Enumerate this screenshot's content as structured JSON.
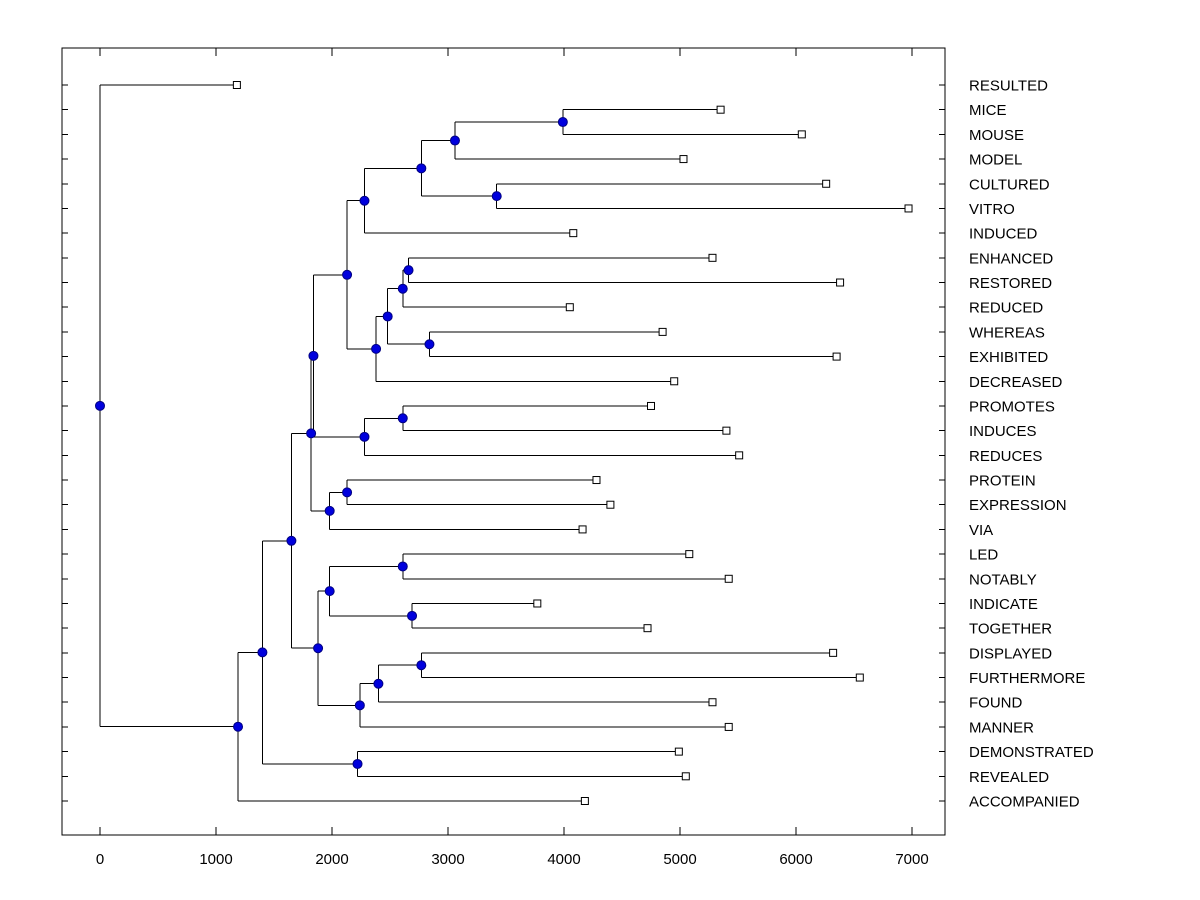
{
  "style": {
    "background": "#FFFFFF",
    "line_color": "#000000",
    "node_fill": "#0000DD",
    "node_stroke": "#000080",
    "leaf_fill": "#FFFFFF",
    "text_color": "#000000"
  },
  "chart_data": {
    "type": "dendrogram",
    "orientation": "horizontal",
    "leaf_labels_position": "right",
    "x_ticks": [
      0,
      1000,
      2000,
      3000,
      4000,
      5000,
      6000,
      7000
    ],
    "xlim": [
      -330,
      7290
    ],
    "grid": false,
    "leaf_order": [
      "RESULTED",
      "MICE",
      "MOUSE",
      "MODEL",
      "CULTURED",
      "VITRO",
      "INDUCED",
      "ENHANCED",
      "RESTORED",
      "REDUCED",
      "WHEREAS",
      "EXHIBITED",
      "DECREASED",
      "PROMOTES",
      "INDUCES",
      "REDUCES",
      "PROTEIN",
      "EXPRESSION",
      "VIA",
      "LED",
      "NOTABLY",
      "INDICATE",
      "TOGETHER",
      "DISPLAYED",
      "FURTHERMORE",
      "FOUND",
      "MANNER",
      "DEMONSTRATED",
      "REVEALED",
      "ACCOMPANIED"
    ],
    "tree": {
      "x": 0,
      "children": [
        {
          "leaf": true,
          "label": "RESULTED",
          "x": 1180
        },
        {
          "x": 1190,
          "children": [
            {
              "x": 1400,
              "children": [
                {
                  "x": 1650,
                  "children": [
                    {
                      "x": 1820,
                      "children": [
                        {
                          "x": 1840,
                          "children": [
                            {
                              "x": 2130,
                              "children": [
                                {
                                  "x": 2280,
                                  "children": [
                                    {
                                      "x": 2770,
                                      "children": [
                                        {
                                          "x": 3060,
                                          "children": [
                                            {
                                              "x": 3990,
                                              "children": [
                                                {
                                                  "leaf": true,
                                                  "label": "MICE",
                                                  "x": 5350
                                                },
                                                {
                                                  "leaf": true,
                                                  "label": "MOUSE",
                                                  "x": 6050
                                                }
                                              ]
                                            },
                                            {
                                              "leaf": true,
                                              "label": "MODEL",
                                              "x": 5030
                                            }
                                          ]
                                        },
                                        {
                                          "x": 3420,
                                          "children": [
                                            {
                                              "leaf": true,
                                              "label": "CULTURED",
                                              "x": 6260
                                            },
                                            {
                                              "leaf": true,
                                              "label": "VITRO",
                                              "x": 6970
                                            }
                                          ]
                                        }
                                      ]
                                    },
                                    {
                                      "leaf": true,
                                      "label": "INDUCED",
                                      "x": 4080
                                    }
                                  ]
                                },
                                {
                                  "x": 2380,
                                  "children": [
                                    {
                                      "x": 2480,
                                      "children": [
                                        {
                                          "x": 2610,
                                          "children": [
                                            {
                                              "x": 2660,
                                              "children": [
                                                {
                                                  "leaf": true,
                                                  "label": "ENHANCED",
                                                  "x": 5280
                                                },
                                                {
                                                  "leaf": true,
                                                  "label": "RESTORED",
                                                  "x": 6380
                                                }
                                              ]
                                            },
                                            {
                                              "leaf": true,
                                              "label": "REDUCED",
                                              "x": 4050
                                            }
                                          ]
                                        },
                                        {
                                          "x": 2840,
                                          "children": [
                                            {
                                              "leaf": true,
                                              "label": "WHEREAS",
                                              "x": 4850
                                            },
                                            {
                                              "leaf": true,
                                              "label": "EXHIBITED",
                                              "x": 6350
                                            }
                                          ]
                                        }
                                      ]
                                    },
                                    {
                                      "leaf": true,
                                      "label": "DECREASED",
                                      "x": 4950
                                    }
                                  ]
                                }
                              ]
                            },
                            {
                              "x": 2280,
                              "children": [
                                {
                                  "x": 2610,
                                  "children": [
                                    {
                                      "leaf": true,
                                      "label": "PROMOTES",
                                      "x": 4750
                                    },
                                    {
                                      "leaf": true,
                                      "label": "INDUCES",
                                      "x": 5400
                                    }
                                  ]
                                },
                                {
                                  "leaf": true,
                                  "label": "REDUCES",
                                  "x": 5510
                                }
                              ]
                            }
                          ]
                        },
                        {
                          "x": 1980,
                          "children": [
                            {
                              "x": 2130,
                              "children": [
                                {
                                  "leaf": true,
                                  "label": "PROTEIN",
                                  "x": 4280
                                },
                                {
                                  "leaf": true,
                                  "label": "EXPRESSION",
                                  "x": 4400
                                }
                              ]
                            },
                            {
                              "leaf": true,
                              "label": "VIA",
                              "x": 4160
                            }
                          ]
                        }
                      ]
                    },
                    {
                      "x": 1880,
                      "children": [
                        {
                          "x": 1980,
                          "children": [
                            {
                              "x": 2610,
                              "children": [
                                {
                                  "leaf": true,
                                  "label": "LED",
                                  "x": 5080
                                },
                                {
                                  "leaf": true,
                                  "label": "NOTABLY",
                                  "x": 5420
                                }
                              ]
                            },
                            {
                              "x": 2690,
                              "children": [
                                {
                                  "leaf": true,
                                  "label": "INDICATE",
                                  "x": 3770
                                },
                                {
                                  "leaf": true,
                                  "label": "TOGETHER",
                                  "x": 4720
                                }
                              ]
                            }
                          ]
                        },
                        {
                          "x": 2240,
                          "children": [
                            {
                              "x": 2400,
                              "children": [
                                {
                                  "x": 2770,
                                  "children": [
                                    {
                                      "leaf": true,
                                      "label": "DISPLAYED",
                                      "x": 6320
                                    },
                                    {
                                      "leaf": true,
                                      "label": "FURTHERMORE",
                                      "x": 6550
                                    }
                                  ]
                                },
                                {
                                  "leaf": true,
                                  "label": "FOUND",
                                  "x": 5280
                                }
                              ]
                            },
                            {
                              "leaf": true,
                              "label": "MANNER",
                              "x": 5420
                            }
                          ]
                        }
                      ]
                    }
                  ]
                },
                {
                  "x": 2220,
                  "children": [
                    {
                      "leaf": true,
                      "label": "DEMONSTRATED",
                      "x": 4990
                    },
                    {
                      "leaf": true,
                      "label": "REVEALED",
                      "x": 5050
                    }
                  ]
                }
              ]
            },
            {
              "leaf": true,
              "label": "ACCOMPANIED",
              "x": 4180
            }
          ]
        }
      ]
    }
  }
}
